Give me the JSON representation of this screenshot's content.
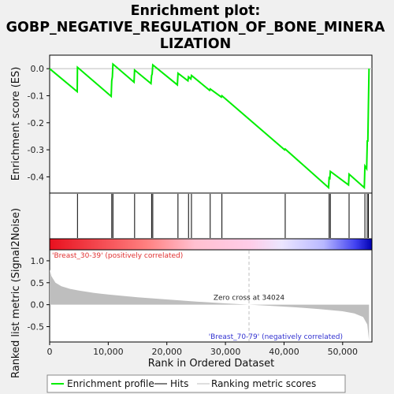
{
  "title_lines": [
    "Enrichment plot:",
    "GOBP_NEGATIVE_REGULATION_OF_BONE_MINERA",
    "LIZATION"
  ],
  "colors": {
    "curve": "#00ee00",
    "hits": "#000000",
    "metric_fill": "#bebebe",
    "pos_label": "#e03030",
    "neg_label": "#3030d0",
    "zero_line": "#bebebe"
  },
  "chart_data": [
    {
      "type": "line",
      "name": "enrichment-profile",
      "ylabel": "Enrichment score (ES)",
      "xlim": [
        0,
        55000
      ],
      "ylim": [
        -0.46,
        0.05
      ],
      "yticks": [
        0.0,
        -0.1,
        -0.2,
        -0.3,
        -0.4
      ],
      "ytick_labels": [
        "0.0",
        "-0.1",
        "-0.2",
        "-0.3",
        "-0.4"
      ],
      "grid": false,
      "x": [
        0,
        4700,
        4750,
        10500,
        10600,
        10700,
        10800,
        14400,
        14500,
        17300,
        17400,
        17500,
        17600,
        21800,
        21900,
        23600,
        23700,
        24100,
        24200,
        27300,
        27400,
        29300,
        29400,
        40100,
        40200,
        47600,
        47700,
        47800,
        47900,
        51000,
        51100,
        53700,
        53800,
        54100,
        54200,
        54300,
        54400,
        54500
      ],
      "y": [
        0.0,
        -0.085,
        0.005,
        -0.102,
        -0.045,
        -0.03,
        0.017,
        -0.05,
        -0.005,
        -0.055,
        -0.025,
        -0.02,
        0.014,
        -0.06,
        -0.017,
        -0.045,
        -0.03,
        -0.038,
        -0.025,
        -0.08,
        -0.075,
        -0.105,
        -0.1,
        -0.3,
        -0.297,
        -0.44,
        -0.4,
        -0.41,
        -0.38,
        -0.43,
        -0.39,
        -0.44,
        -0.36,
        -0.37,
        -0.265,
        -0.27,
        -0.14,
        0.0
      ]
    },
    {
      "type": "scatter",
      "name": "hits",
      "x": [
        4750,
        10600,
        10800,
        14500,
        17400,
        17600,
        21900,
        23700,
        24200,
        27400,
        29400,
        40200,
        47700,
        47900,
        51100,
        53800,
        54200,
        54400
      ]
    },
    {
      "type": "area",
      "name": "ranking-metric",
      "xlabel": "Rank in Ordered Dataset",
      "ylabel": "Ranked list metric (Signal2Noise)",
      "xlim": [
        0,
        55000
      ],
      "ylim": [
        -0.85,
        1.25
      ],
      "xticks": [
        0,
        10000,
        20000,
        30000,
        40000,
        50000
      ],
      "xtick_labels": [
        "0",
        "10,000",
        "20,000",
        "30,000",
        "40,000",
        "50,000"
      ],
      "yticks": [
        1.0,
        0.5,
        0.0,
        -0.5
      ],
      "ytick_labels": [
        "1.0",
        "0.5",
        "0.0",
        "-0.5"
      ],
      "x": [
        0,
        300,
        1000,
        2000,
        3500,
        5000,
        7500,
        10000,
        15000,
        20000,
        25000,
        30000,
        34024,
        38000,
        42000,
        46000,
        50000,
        52000,
        53500,
        54200,
        54500
      ],
      "y": [
        0.8,
        0.65,
        0.5,
        0.42,
        0.36,
        0.32,
        0.27,
        0.23,
        0.17,
        0.12,
        0.07,
        0.03,
        0.0,
        -0.03,
        -0.06,
        -0.1,
        -0.15,
        -0.2,
        -0.28,
        -0.45,
        -0.82
      ],
      "zero_cross_text": "Zero cross at 34024",
      "zero_cross_x": 34024,
      "pos_label": "'Breast_30-39' (positively correlated)",
      "neg_label": "'Breast_70-79' (negatively correlated)"
    }
  ],
  "legend": {
    "items": [
      {
        "label": "Enrichment profile"
      },
      {
        "label": "Hits"
      },
      {
        "label": "Ranking metric scores"
      }
    ]
  }
}
